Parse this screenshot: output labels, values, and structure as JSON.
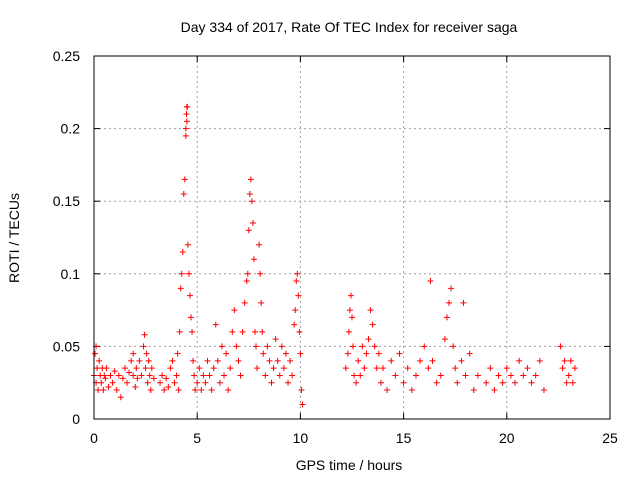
{
  "chart_data": {
    "type": "scatter",
    "title": "Day 334 of 2017, Rate Of TEC Index for receiver saga",
    "xlabel": "GPS time / hours",
    "ylabel": "ROTI / TECUs",
    "xlim": [
      0,
      25
    ],
    "ylim": [
      0,
      0.25
    ],
    "xticks": [
      0,
      5,
      10,
      15,
      20,
      25
    ],
    "yticks": [
      0,
      0.05,
      0.1,
      0.15,
      0.2,
      0.25
    ],
    "xtick_labels": [
      "0",
      "5",
      "10",
      "15",
      "20",
      "25"
    ],
    "ytick_labels": [
      "0",
      "0.05",
      "0.1",
      "0.15",
      "0.2",
      "0.25"
    ],
    "grid": true,
    "marker": "+",
    "color": "#ff0000",
    "series": [
      {
        "points": [
          [
            0.0,
            0.03
          ],
          [
            0.05,
            0.045
          ],
          [
            0.1,
            0.025
          ],
          [
            0.1,
            0.05
          ],
          [
            0.15,
            0.035
          ],
          [
            0.2,
            0.02
          ],
          [
            0.25,
            0.04
          ],
          [
            0.3,
            0.03
          ],
          [
            0.35,
            0.025
          ],
          [
            0.4,
            0.035
          ],
          [
            0.45,
            0.02
          ],
          [
            0.5,
            0.03
          ],
          [
            0.55,
            0.028
          ],
          [
            0.6,
            0.035
          ],
          [
            0.7,
            0.022
          ],
          [
            0.8,
            0.03
          ],
          [
            0.9,
            0.025
          ],
          [
            1.0,
            0.033
          ],
          [
            1.1,
            0.02
          ],
          [
            1.2,
            0.03
          ],
          [
            1.3,
            0.015
          ],
          [
            1.4,
            0.028
          ],
          [
            1.5,
            0.035
          ],
          [
            1.6,
            0.025
          ],
          [
            1.7,
            0.032
          ],
          [
            1.8,
            0.04
          ],
          [
            1.9,
            0.03
          ],
          [
            1.9,
            0.045
          ],
          [
            2.0,
            0.022
          ],
          [
            2.05,
            0.035
          ],
          [
            2.1,
            0.028
          ],
          [
            2.2,
            0.04
          ],
          [
            2.3,
            0.03
          ],
          [
            2.4,
            0.05
          ],
          [
            2.45,
            0.058
          ],
          [
            2.5,
            0.035
          ],
          [
            2.55,
            0.045
          ],
          [
            2.6,
            0.025
          ],
          [
            2.65,
            0.04
          ],
          [
            2.7,
            0.03
          ],
          [
            2.75,
            0.02
          ],
          [
            2.8,
            0.035
          ],
          [
            2.9,
            0.028
          ],
          [
            3.2,
            0.025
          ],
          [
            3.3,
            0.03
          ],
          [
            3.4,
            0.02
          ],
          [
            3.5,
            0.028
          ],
          [
            3.6,
            0.022
          ],
          [
            3.7,
            0.035
          ],
          [
            3.8,
            0.04
          ],
          [
            3.9,
            0.025
          ],
          [
            4.0,
            0.03
          ],
          [
            4.05,
            0.045
          ],
          [
            4.1,
            0.02
          ],
          [
            4.15,
            0.06
          ],
          [
            4.2,
            0.09
          ],
          [
            4.25,
            0.1
          ],
          [
            4.3,
            0.115
          ],
          [
            4.35,
            0.155
          ],
          [
            4.4,
            0.165
          ],
          [
            4.45,
            0.195
          ],
          [
            4.45,
            0.2
          ],
          [
            4.5,
            0.205
          ],
          [
            4.5,
            0.215
          ],
          [
            4.52,
            0.215
          ],
          [
            4.48,
            0.21
          ],
          [
            4.55,
            0.12
          ],
          [
            4.6,
            0.1
          ],
          [
            4.65,
            0.085
          ],
          [
            4.7,
            0.07
          ],
          [
            4.75,
            0.06
          ],
          [
            4.8,
            0.04
          ],
          [
            4.85,
            0.03
          ],
          [
            4.9,
            0.02
          ],
          [
            5.0,
            0.025
          ],
          [
            5.1,
            0.035
          ],
          [
            5.2,
            0.02
          ],
          [
            5.3,
            0.03
          ],
          [
            5.4,
            0.025
          ],
          [
            5.5,
            0.04
          ],
          [
            5.6,
            0.03
          ],
          [
            5.7,
            0.02
          ],
          [
            5.8,
            0.035
          ],
          [
            5.9,
            0.065
          ],
          [
            6.0,
            0.04
          ],
          [
            6.1,
            0.025
          ],
          [
            6.2,
            0.05
          ],
          [
            6.3,
            0.03
          ],
          [
            6.4,
            0.045
          ],
          [
            6.5,
            0.02
          ],
          [
            6.6,
            0.035
          ],
          [
            6.7,
            0.06
          ],
          [
            6.8,
            0.075
          ],
          [
            6.9,
            0.05
          ],
          [
            7.0,
            0.04
          ],
          [
            7.1,
            0.03
          ],
          [
            7.2,
            0.06
          ],
          [
            7.3,
            0.08
          ],
          [
            7.4,
            0.095
          ],
          [
            7.45,
            0.1
          ],
          [
            7.5,
            0.13
          ],
          [
            7.55,
            0.155
          ],
          [
            7.6,
            0.165
          ],
          [
            7.65,
            0.15
          ],
          [
            7.7,
            0.135
          ],
          [
            7.75,
            0.11
          ],
          [
            7.8,
            0.06
          ],
          [
            7.85,
            0.05
          ],
          [
            7.9,
            0.035
          ],
          [
            8.0,
            0.12
          ],
          [
            8.05,
            0.1
          ],
          [
            8.1,
            0.08
          ],
          [
            8.15,
            0.06
          ],
          [
            8.2,
            0.045
          ],
          [
            8.3,
            0.03
          ],
          [
            8.4,
            0.05
          ],
          [
            8.5,
            0.04
          ],
          [
            8.6,
            0.025
          ],
          [
            8.7,
            0.035
          ],
          [
            8.8,
            0.055
          ],
          [
            8.9,
            0.04
          ],
          [
            9.0,
            0.03
          ],
          [
            9.1,
            0.05
          ],
          [
            9.2,
            0.035
          ],
          [
            9.3,
            0.045
          ],
          [
            9.4,
            0.025
          ],
          [
            9.5,
            0.04
          ],
          [
            9.6,
            0.03
          ],
          [
            9.7,
            0.065
          ],
          [
            9.75,
            0.075
          ],
          [
            9.8,
            0.095
          ],
          [
            9.85,
            0.1
          ],
          [
            9.9,
            0.085
          ],
          [
            9.95,
            0.06
          ],
          [
            10.0,
            0.045
          ],
          [
            10.05,
            0.02
          ],
          [
            10.1,
            0.01
          ],
          [
            12.2,
            0.035
          ],
          [
            12.3,
            0.045
          ],
          [
            12.35,
            0.06
          ],
          [
            12.4,
            0.075
          ],
          [
            12.45,
            0.085
          ],
          [
            12.5,
            0.07
          ],
          [
            12.55,
            0.05
          ],
          [
            12.6,
            0.03
          ],
          [
            12.7,
            0.025
          ],
          [
            12.8,
            0.04
          ],
          [
            12.9,
            0.03
          ],
          [
            13.0,
            0.05
          ],
          [
            13.1,
            0.035
          ],
          [
            13.2,
            0.045
          ],
          [
            13.3,
            0.055
          ],
          [
            13.4,
            0.075
          ],
          [
            13.5,
            0.065
          ],
          [
            13.6,
            0.05
          ],
          [
            13.7,
            0.035
          ],
          [
            13.8,
            0.045
          ],
          [
            13.9,
            0.025
          ],
          [
            14.0,
            0.035
          ],
          [
            14.2,
            0.02
          ],
          [
            14.4,
            0.04
          ],
          [
            14.6,
            0.03
          ],
          [
            14.8,
            0.045
          ],
          [
            15.0,
            0.025
          ],
          [
            15.2,
            0.035
          ],
          [
            15.4,
            0.02
          ],
          [
            15.6,
            0.03
          ],
          [
            15.8,
            0.04
          ],
          [
            16.0,
            0.05
          ],
          [
            16.2,
            0.035
          ],
          [
            16.3,
            0.095
          ],
          [
            16.4,
            0.04
          ],
          [
            16.6,
            0.025
          ],
          [
            16.8,
            0.03
          ],
          [
            17.0,
            0.055
          ],
          [
            17.1,
            0.07
          ],
          [
            17.2,
            0.08
          ],
          [
            17.3,
            0.09
          ],
          [
            17.4,
            0.05
          ],
          [
            17.5,
            0.035
          ],
          [
            17.6,
            0.025
          ],
          [
            17.8,
            0.04
          ],
          [
            17.9,
            0.08
          ],
          [
            18.0,
            0.03
          ],
          [
            18.2,
            0.045
          ],
          [
            18.4,
            0.02
          ],
          [
            18.6,
            0.03
          ],
          [
            19.0,
            0.025
          ],
          [
            19.2,
            0.035
          ],
          [
            19.4,
            0.02
          ],
          [
            19.6,
            0.03
          ],
          [
            19.8,
            0.025
          ],
          [
            20.0,
            0.035
          ],
          [
            20.2,
            0.03
          ],
          [
            20.4,
            0.025
          ],
          [
            20.6,
            0.04
          ],
          [
            20.8,
            0.03
          ],
          [
            21.0,
            0.035
          ],
          [
            21.2,
            0.025
          ],
          [
            21.4,
            0.03
          ],
          [
            21.6,
            0.04
          ],
          [
            21.8,
            0.02
          ],
          [
            22.6,
            0.05
          ],
          [
            22.7,
            0.035
          ],
          [
            22.8,
            0.04
          ],
          [
            22.9,
            0.025
          ],
          [
            23.0,
            0.03
          ],
          [
            23.1,
            0.04
          ],
          [
            23.2,
            0.025
          ],
          [
            23.3,
            0.035
          ]
        ]
      }
    ]
  }
}
